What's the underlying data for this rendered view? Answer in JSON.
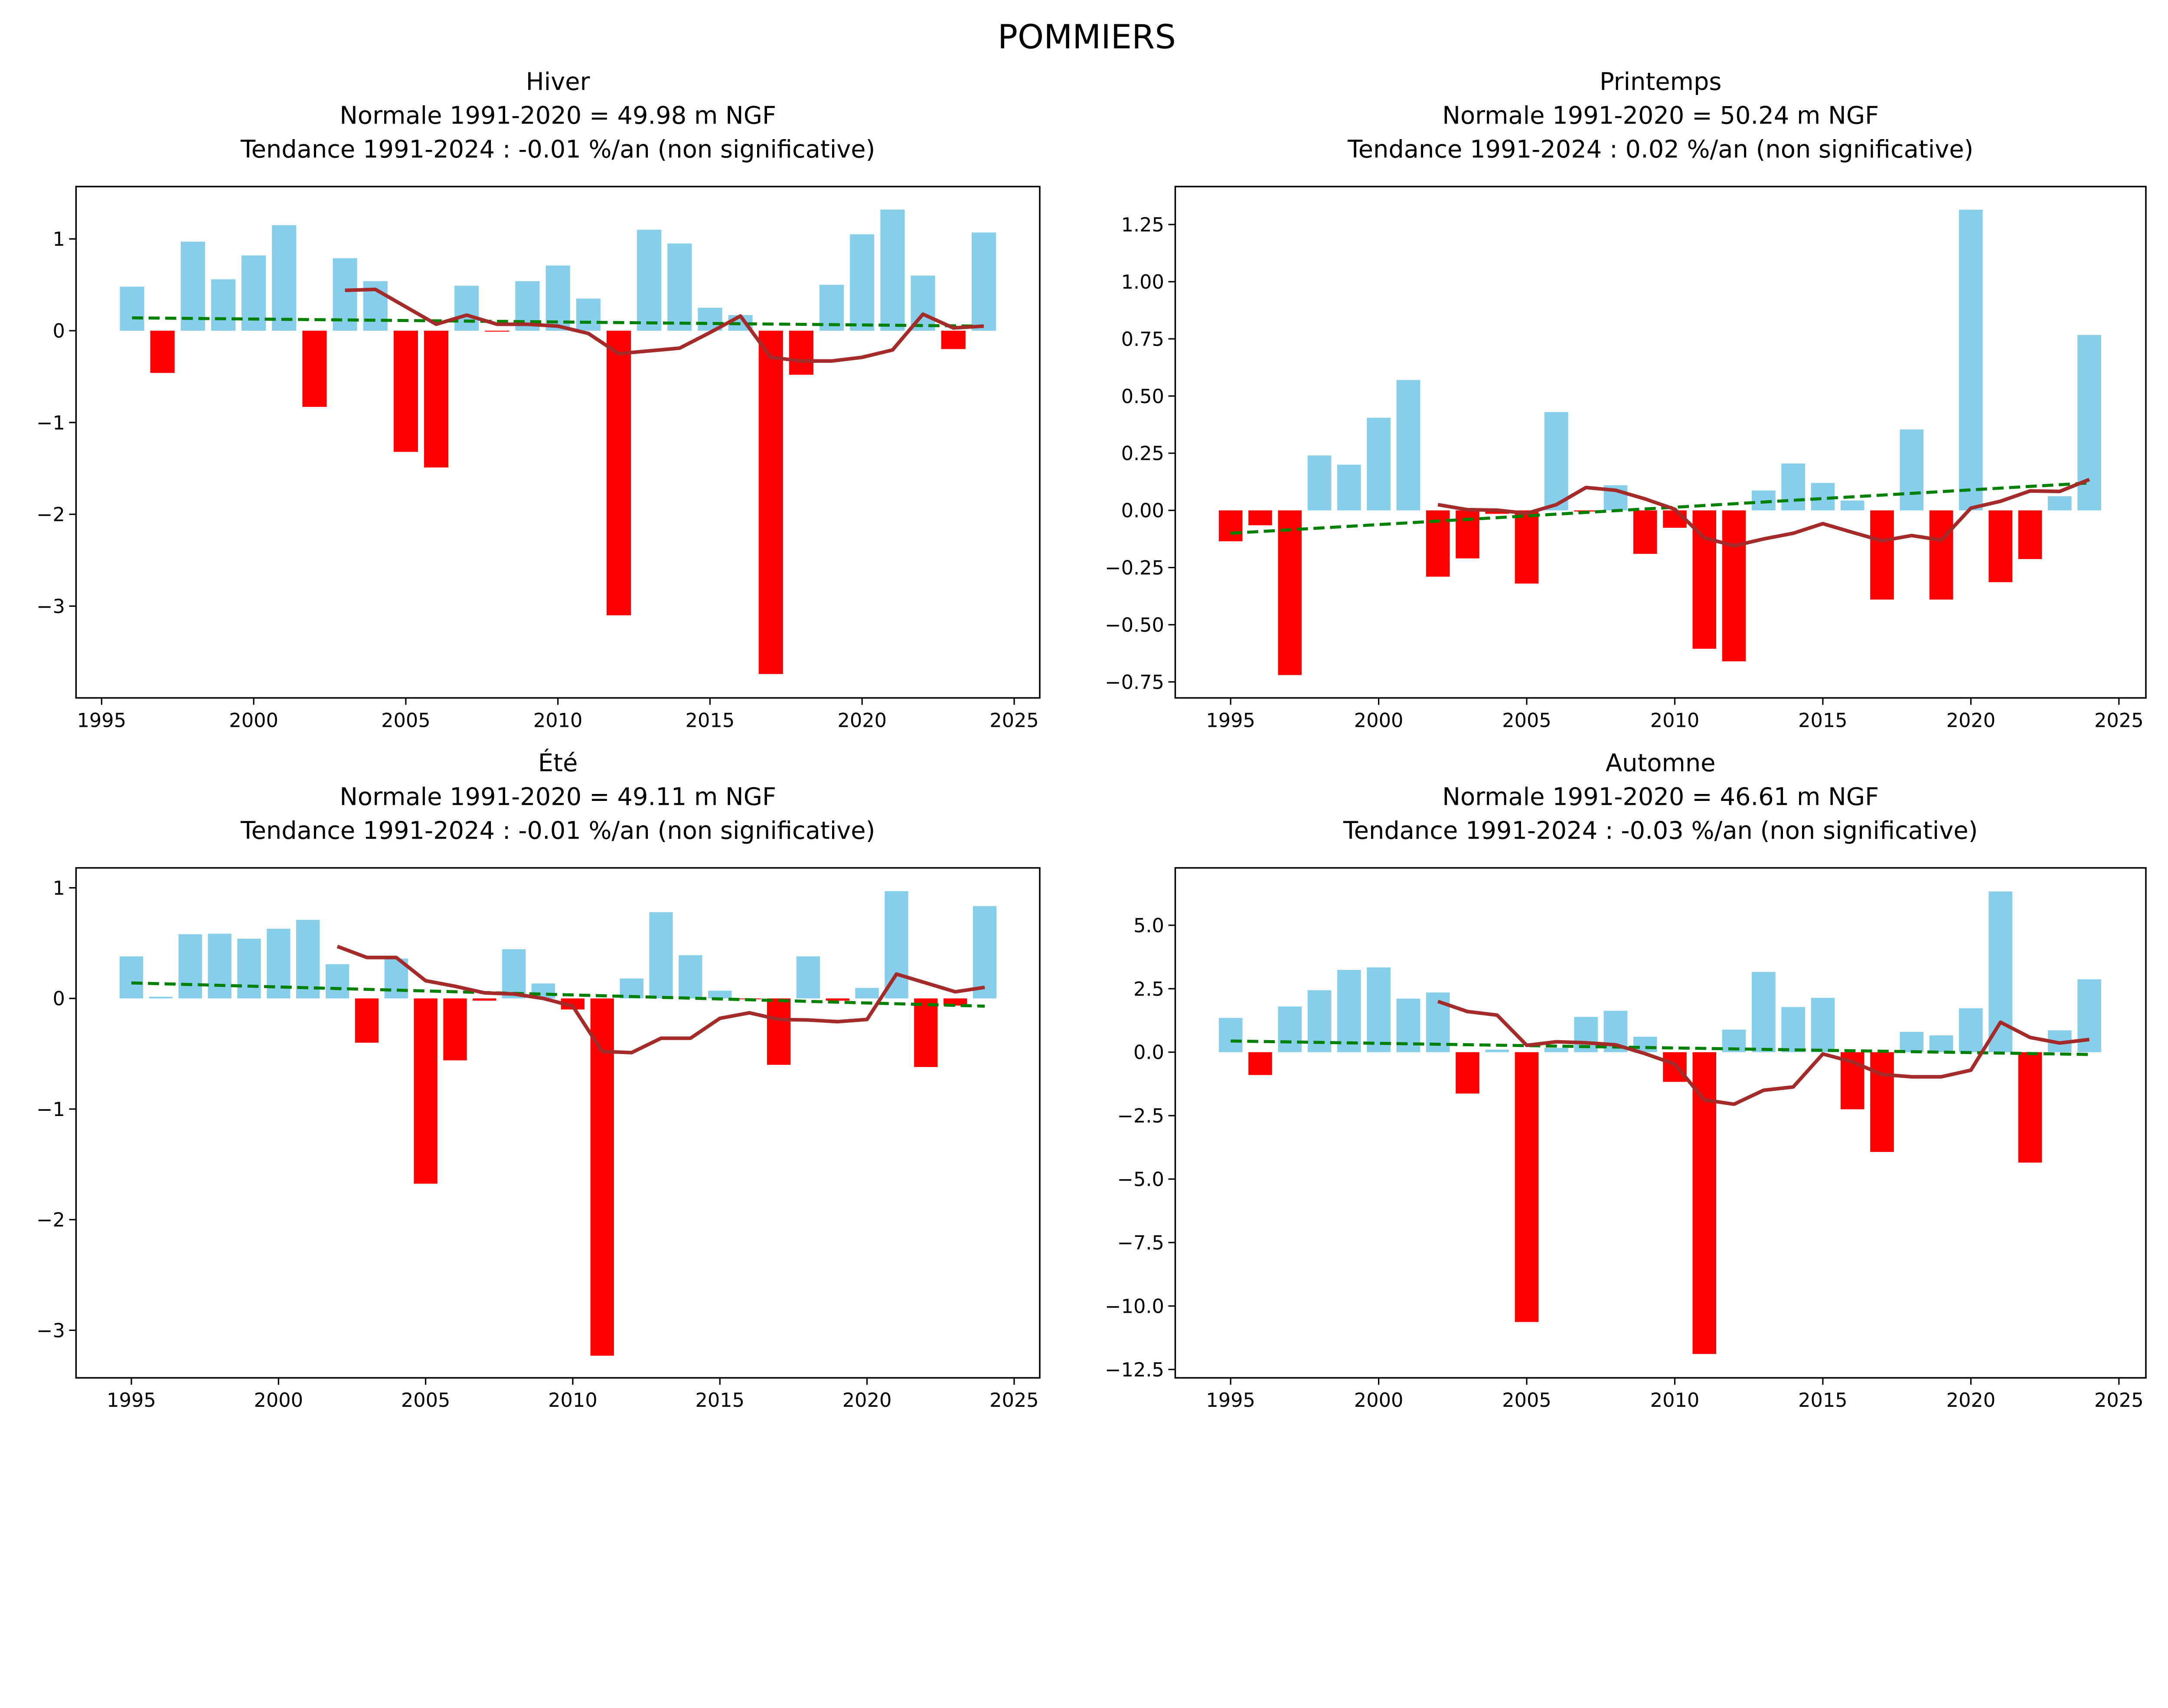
{
  "suptitle": "POMMIERS",
  "colors": {
    "positive_bar": "#87CEEB",
    "negative_bar": "#FF0000",
    "moving_average": "#A52A2A",
    "trend": "#008000"
  },
  "chart_data": [
    {
      "type": "bar",
      "panel": "top-left",
      "title_lines": [
        "Hiver",
        "Normale 1991-2020 = 49.98 m NGF",
        "Tendance 1991-2024 : -0.01 %/an (non significative)"
      ],
      "season": "Hiver",
      "normale": "49.98 m NGF",
      "tendance": "-0.01 %/an (non significative)",
      "xlabel": "",
      "ylabel": "",
      "xlim": [
        1994.16,
        2025.84
      ],
      "ylim": [
        -4.0,
        1.57
      ],
      "xticks": [
        1995,
        2000,
        2005,
        2010,
        2015,
        2020,
        2025
      ],
      "yticks": [
        -3,
        -2,
        -1,
        0,
        1
      ],
      "ytick_labels": [
        "−3",
        "−2",
        "−1",
        "0",
        "1"
      ],
      "x": [
        1996,
        1997,
        1998,
        1999,
        2000,
        2001,
        2002,
        2003,
        2004,
        2005,
        2006,
        2007,
        2008,
        2009,
        2010,
        2011,
        2012,
        2013,
        2014,
        2015,
        2016,
        2017,
        2018,
        2019,
        2020,
        2021,
        2022,
        2023,
        2024
      ],
      "values": [
        0.48,
        -0.46,
        0.97,
        0.56,
        0.82,
        1.15,
        -0.83,
        0.79,
        0.54,
        -1.32,
        -1.49,
        0.49,
        -0.01,
        0.54,
        0.71,
        0.35,
        -3.1,
        1.1,
        0.95,
        0.25,
        0.17,
        -3.74,
        -0.48,
        0.5,
        1.05,
        1.32,
        0.6,
        -0.2,
        1.07
      ],
      "moving_average": {
        "x": [
          2003,
          2004,
          2005,
          2006,
          2007,
          2008,
          2009,
          2010,
          2011,
          2012,
          2013,
          2014,
          2015,
          2016,
          2017,
          2018,
          2019,
          2020,
          2021,
          2022,
          2023,
          2024
        ],
        "values": [
          0.44,
          0.45,
          0.26,
          0.07,
          0.17,
          0.07,
          0.07,
          0.05,
          -0.03,
          -0.25,
          -0.22,
          -0.19,
          -0.02,
          0.16,
          -0.29,
          -0.33,
          -0.33,
          -0.29,
          -0.21,
          0.18,
          0.03,
          0.05
        ]
      },
      "trend": {
        "x": [
          1996,
          2024
        ],
        "values": [
          0.14,
          0.05
        ]
      },
      "grid": false
    },
    {
      "type": "bar",
      "panel": "top-right",
      "title_lines": [
        "Printemps",
        "Normale 1991-2020 = 50.24 m NGF",
        "Tendance 1991-2024 : 0.02 %/an (non significative)"
      ],
      "season": "Printemps",
      "normale": "50.24 m NGF",
      "tendance": "0.02 %/an (non significative)",
      "xlabel": "",
      "ylabel": "",
      "xlim": [
        1993.13,
        2025.91
      ],
      "ylim": [
        -0.82,
        1.416
      ],
      "xticks": [
        1995,
        2000,
        2005,
        2010,
        2015,
        2020,
        2025
      ],
      "yticks": [
        -0.75,
        -0.5,
        -0.25,
        0,
        0.25,
        0.5,
        0.75,
        1.0,
        1.25
      ],
      "ytick_labels": [
        "−0.75",
        "−0.50",
        "−0.25",
        "0.00",
        "0.25",
        "0.50",
        "0.75",
        "1.00",
        "1.25"
      ],
      "x": [
        1995,
        1996,
        1997,
        1998,
        1999,
        2000,
        2001,
        2002,
        2003,
        2004,
        2005,
        2006,
        2007,
        2008,
        2009,
        2010,
        2011,
        2012,
        2013,
        2014,
        2015,
        2016,
        2017,
        2018,
        2019,
        2020,
        2021,
        2022,
        2023,
        2024
      ],
      "values": [
        -0.135,
        -0.065,
        -0.72,
        0.24,
        0.2,
        0.405,
        0.57,
        -0.29,
        -0.21,
        -0.015,
        -0.32,
        0.43,
        -0.005,
        0.11,
        -0.19,
        -0.076,
        -0.605,
        -0.66,
        0.087,
        0.205,
        0.12,
        0.043,
        -0.39,
        0.354,
        -0.39,
        1.315,
        -0.314,
        -0.213,
        0.062,
        0.767
      ],
      "moving_average": {
        "x": [
          2002,
          2003,
          2004,
          2005,
          2006,
          2007,
          2008,
          2009,
          2010,
          2011,
          2012,
          2013,
          2014,
          2015,
          2016,
          2017,
          2018,
          2019,
          2020,
          2021,
          2022,
          2023,
          2024
        ],
        "values": [
          0.025,
          0.003,
          0.001,
          -0.013,
          0.025,
          0.1,
          0.088,
          0.05,
          0.005,
          -0.12,
          -0.155,
          -0.125,
          -0.1,
          -0.058,
          -0.096,
          -0.133,
          -0.11,
          -0.13,
          0.01,
          0.04,
          0.085,
          0.083,
          0.135
        ]
      },
      "trend": {
        "x": [
          1995,
          2024
        ],
        "values": [
          -0.1,
          0.12
        ]
      },
      "grid": false
    },
    {
      "type": "bar",
      "panel": "bottom-left",
      "title_lines": [
        "Été",
        "Normale 1991-2020 = 49.11 m NGF",
        "Tendance 1991-2024 : -0.01 %/an (non significative)"
      ],
      "season": "Été",
      "normale": "49.11 m NGF",
      "tendance": "-0.01 %/an (non significative)",
      "xlabel": "",
      "ylabel": "",
      "xlim": [
        1993.12,
        2025.87
      ],
      "ylim": [
        -3.43,
        1.18
      ],
      "xticks": [
        1995,
        2000,
        2005,
        2010,
        2015,
        2020,
        2025
      ],
      "yticks": [
        -3,
        -2,
        -1,
        0,
        1
      ],
      "ytick_labels": [
        "−3",
        "−2",
        "−1",
        "0",
        "1"
      ],
      "x": [
        1995,
        1996,
        1997,
        1998,
        1999,
        2000,
        2001,
        2002,
        2003,
        2004,
        2005,
        2006,
        2007,
        2008,
        2009,
        2010,
        2011,
        2012,
        2013,
        2014,
        2015,
        2016,
        2017,
        2018,
        2019,
        2020,
        2021,
        2022,
        2023,
        2024
      ],
      "values": [
        0.38,
        0.015,
        0.58,
        0.585,
        0.54,
        0.63,
        0.71,
        0.31,
        -0.4,
        0.36,
        -1.675,
        -0.56,
        -0.02,
        0.445,
        0.135,
        -0.1,
        -3.23,
        0.18,
        0.78,
        0.39,
        0.07,
        -0.005,
        -0.6,
        0.38,
        -0.02,
        0.095,
        0.97,
        -0.62,
        -0.065,
        0.835
      ],
      "moving_average": {
        "x": [
          2002,
          2003,
          2004,
          2005,
          2006,
          2007,
          2008,
          2009,
          2010,
          2011,
          2012,
          2013,
          2014,
          2015,
          2016,
          2017,
          2018,
          2019,
          2020,
          2021,
          2022,
          2023,
          2024
        ],
        "values": [
          0.47,
          0.37,
          0.37,
          0.16,
          0.11,
          0.05,
          0.04,
          0.0,
          -0.07,
          -0.48,
          -0.49,
          -0.36,
          -0.36,
          -0.18,
          -0.13,
          -0.19,
          -0.195,
          -0.21,
          -0.19,
          0.22,
          0.14,
          0.06,
          0.1
        ]
      },
      "trend": {
        "x": [
          1995,
          2024
        ],
        "values": [
          0.14,
          -0.07
        ]
      },
      "grid": false
    },
    {
      "type": "bar",
      "panel": "bottom-right",
      "title_lines": [
        "Automne",
        "Normale 1991-2020 = 46.61 m NGF",
        "Tendance 1991-2024 : -0.03 %/an (non significative)"
      ],
      "season": "Automne",
      "normale": "46.61 m NGF",
      "tendance": "-0.03 %/an (non significative)",
      "xlabel": "",
      "ylabel": "",
      "xlim": [
        1993.13,
        2025.91
      ],
      "ylim": [
        -12.83,
        7.26
      ],
      "xticks": [
        1995,
        2000,
        2005,
        2010,
        2015,
        2020,
        2025
      ],
      "yticks": [
        -12.5,
        -10,
        -7.5,
        -5,
        -2.5,
        0,
        2.5,
        5
      ],
      "ytick_labels": [
        "−12.5",
        "−10.0",
        "−7.5",
        "−5.0",
        "−2.5",
        "0.0",
        "2.5",
        "5.0"
      ],
      "x": [
        1995,
        1996,
        1997,
        1998,
        1999,
        2000,
        2001,
        2002,
        2003,
        2004,
        2005,
        2006,
        2007,
        2008,
        2009,
        2010,
        2011,
        2012,
        2013,
        2014,
        2015,
        2016,
        2017,
        2018,
        2019,
        2020,
        2021,
        2022,
        2023,
        2024
      ],
      "values": [
        1.35,
        -0.9,
        1.8,
        2.44,
        3.24,
        3.34,
        2.11,
        2.35,
        -1.63,
        0.1,
        -10.63,
        0.17,
        1.39,
        1.63,
        0.61,
        -1.17,
        -11.89,
        0.89,
        3.16,
        1.78,
        2.14,
        -2.25,
        -3.93,
        0.8,
        0.66,
        1.73,
        6.33,
        -4.35,
        0.86,
        2.87
      ],
      "moving_average": {
        "x": [
          2002,
          2003,
          2004,
          2005,
          2006,
          2007,
          2008,
          2009,
          2010,
          2011,
          2012,
          2013,
          2014,
          2015,
          2016,
          2017,
          2018,
          2019,
          2020,
          2021,
          2022,
          2023,
          2024
        ],
        "values": [
          2.0,
          1.6,
          1.46,
          0.27,
          0.41,
          0.37,
          0.29,
          -0.06,
          -0.47,
          -1.88,
          -2.05,
          -1.5,
          -1.37,
          -0.07,
          -0.38,
          -0.88,
          -0.97,
          -0.97,
          -0.71,
          1.18,
          0.58,
          0.36,
          0.5
        ]
      },
      "trend": {
        "x": [
          1995,
          2024
        ],
        "values": [
          0.44,
          -0.09
        ]
      },
      "grid": false
    }
  ]
}
